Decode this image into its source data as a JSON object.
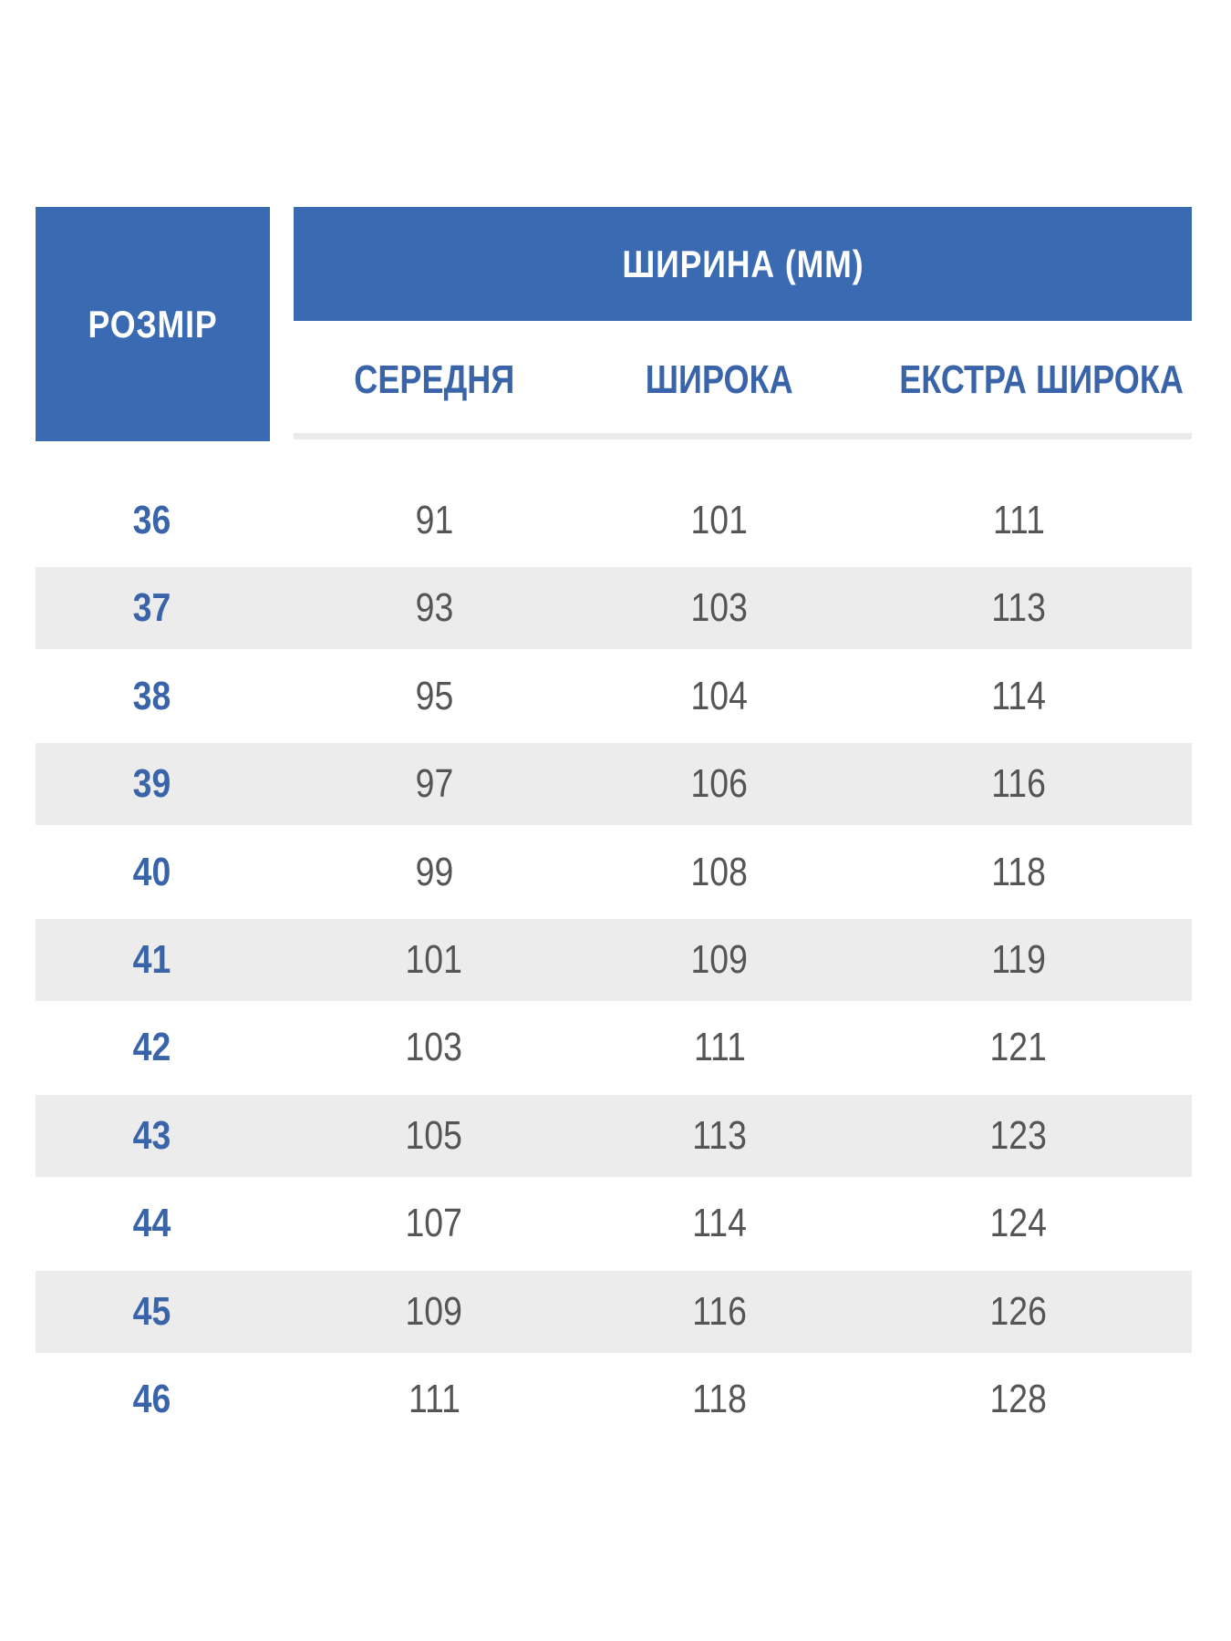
{
  "header": {
    "size_label": "РОЗМІР",
    "width_label": "ШИРИНА (ММ)",
    "columns": [
      "СЕРЕДНЯ",
      "ШИРОКА",
      "ЕКСТРА ШИРОКА"
    ]
  },
  "colors": {
    "header_blue": "#3a6ab1",
    "size_text": "#3a64aa",
    "value_text": "#555555",
    "stripe": "#ececec"
  },
  "rows": [
    {
      "size": "36",
      "medium": "91",
      "wide": "101",
      "extra_wide": "111"
    },
    {
      "size": "37",
      "medium": "93",
      "wide": "103",
      "extra_wide": "113"
    },
    {
      "size": "38",
      "medium": "95",
      "wide": "104",
      "extra_wide": "114"
    },
    {
      "size": "39",
      "medium": "97",
      "wide": "106",
      "extra_wide": "116"
    },
    {
      "size": "40",
      "medium": "99",
      "wide": "108",
      "extra_wide": "118"
    },
    {
      "size": "41",
      "medium": "101",
      "wide": "109",
      "extra_wide": "119"
    },
    {
      "size": "42",
      "medium": "103",
      "wide": "111",
      "extra_wide": "121"
    },
    {
      "size": "43",
      "medium": "105",
      "wide": "113",
      "extra_wide": "123"
    },
    {
      "size": "44",
      "medium": "107",
      "wide": "114",
      "extra_wide": "124"
    },
    {
      "size": "45",
      "medium": "109",
      "wide": "116",
      "extra_wide": "126"
    },
    {
      "size": "46",
      "medium": "111",
      "wide": "118",
      "extra_wide": "128"
    }
  ]
}
